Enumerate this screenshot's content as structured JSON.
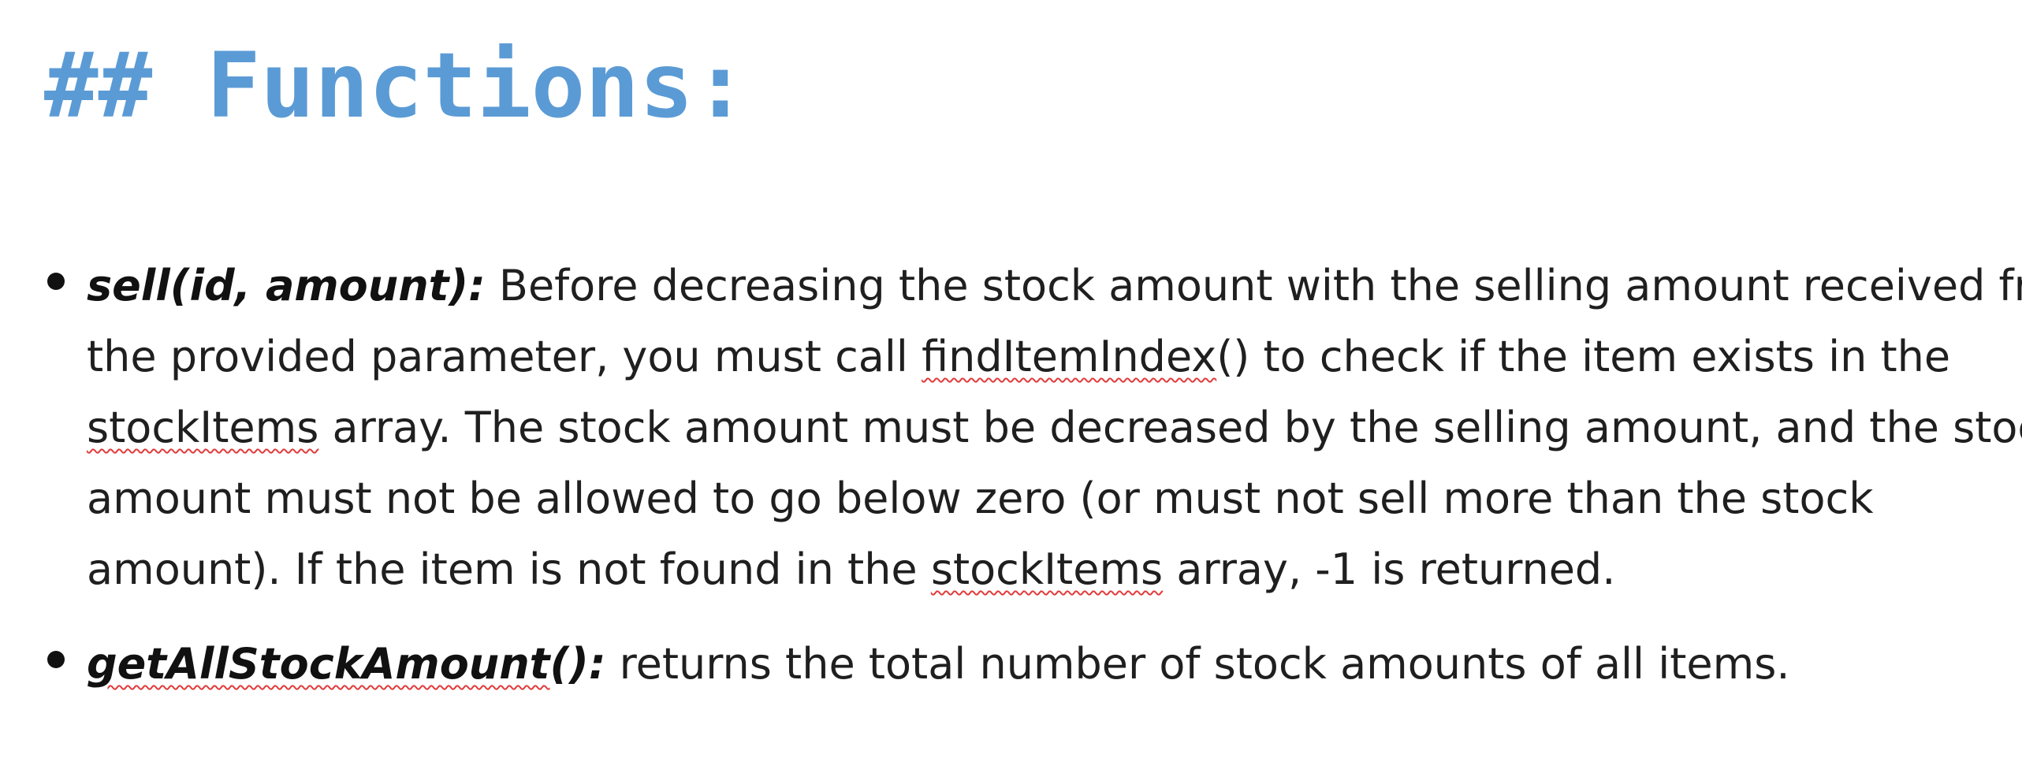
{
  "heading": "## Functions:",
  "bullets": [
    {
      "term": "sell(id, amount):",
      "lines": [
        {
          "after_term": " Before decreasing the stock amount with the selling amount received from"
        },
        {
          "pre": "the provided parameter, you must call ",
          "flag": "findItemIndex",
          "post": "() to check if the item exists in the"
        },
        {
          "flag": "stockItems",
          "post": " array. The stock amount must be decreased by the selling amount, and the stock"
        },
        {
          "text": "amount must not be allowed to go below zero (or must not sell more than the stock"
        },
        {
          "pre": "amount). If the item is not found in the ",
          "flag": "stockItems",
          "post": " array, -1 is returned."
        }
      ]
    },
    {
      "term_flag": "getAllStockAmount",
      "term_rest": "():",
      "text": " returns the total number of stock amounts of all items."
    }
  ],
  "colors": {
    "heading": "#5b9bd5",
    "text": "#1f1f1f",
    "spellcheck_underline": "#e23b3b"
  }
}
